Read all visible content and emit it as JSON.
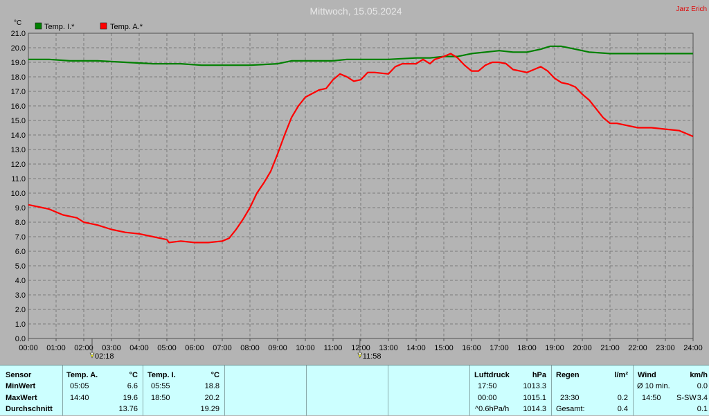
{
  "header": {
    "title": "Mittwoch, 15.05.2024",
    "author": "Jarz Erich"
  },
  "colors": {
    "background": "#b4b4b4",
    "plot_background": "#b4b4b4",
    "grid": "#7a7a7a",
    "temp_inside": "#008000",
    "temp_outside": "#ff0000",
    "stats_background": "#ccffff"
  },
  "chart_data": {
    "type": "line",
    "title": "Mittwoch, 15.05.2024",
    "ylabel": "°C",
    "xlabel": "",
    "ylim": [
      0,
      21
    ],
    "xlim": [
      0,
      24
    ],
    "grid": true,
    "legend_position": "top-left",
    "y_ticks": [
      "0.0",
      "1.0",
      "2.0",
      "3.0",
      "4.0",
      "5.0",
      "6.0",
      "7.0",
      "8.0",
      "9.0",
      "10.0",
      "11.0",
      "12.0",
      "13.0",
      "14.0",
      "15.0",
      "16.0",
      "17.0",
      "18.0",
      "19.0",
      "20.0",
      "21.0"
    ],
    "x_ticks": [
      "00:00",
      "01:00",
      "02:00",
      "03:00",
      "04:00",
      "05:00",
      "06:00",
      "07:00",
      "08:00",
      "09:00",
      "10:00",
      "11:00",
      "12:00",
      "13:00",
      "14:00",
      "15:00",
      "16:00",
      "17:00",
      "18:00",
      "19:00",
      "20:00",
      "21:00",
      "22:00",
      "23:00",
      "24:00"
    ],
    "markers": [
      {
        "icon": "sunrise-icon",
        "x": 2.3,
        "label": "02:18"
      },
      {
        "icon": "sun-icon",
        "x": 11.97,
        "label": "11:58"
      }
    ],
    "series": [
      {
        "name": "Temp. I.*",
        "color": "#008000",
        "x": [
          0,
          0.75,
          1.5,
          2.5,
          3.5,
          4.5,
          5.5,
          6.25,
          7,
          8,
          9,
          9.5,
          10,
          10.5,
          11,
          11.5,
          12,
          12.5,
          13,
          14,
          14.5,
          15,
          15.5,
          16,
          16.5,
          17,
          17.5,
          18,
          18.5,
          18.83,
          19.25,
          19.75,
          20.25,
          21,
          22,
          23,
          24
        ],
        "values": [
          19.2,
          19.2,
          19.1,
          19.1,
          19.0,
          18.9,
          18.9,
          18.8,
          18.8,
          18.8,
          18.9,
          19.1,
          19.1,
          19.1,
          19.1,
          19.2,
          19.2,
          19.2,
          19.2,
          19.3,
          19.3,
          19.4,
          19.4,
          19.6,
          19.7,
          19.8,
          19.7,
          19.7,
          19.9,
          20.1,
          20.1,
          19.9,
          19.7,
          19.6,
          19.6,
          19.6,
          19.6
        ]
      },
      {
        "name": "Temp. A.*",
        "color": "#ff0000",
        "x": [
          0,
          0.5,
          0.75,
          1.25,
          1.75,
          2,
          2.5,
          3,
          3.5,
          4,
          4.5,
          5,
          5.08,
          5.5,
          6,
          6.5,
          7,
          7.25,
          7.5,
          7.75,
          8,
          8.25,
          8.5,
          8.75,
          9,
          9.25,
          9.5,
          9.75,
          10,
          10.5,
          10.75,
          11,
          11.25,
          11.5,
          11.75,
          12,
          12.25,
          12.5,
          13,
          13.25,
          13.5,
          14,
          14.25,
          14.5,
          14.67,
          15,
          15.25,
          15.5,
          15.75,
          16,
          16.25,
          16.5,
          16.75,
          17,
          17.25,
          17.5,
          17.75,
          18,
          18.25,
          18.5,
          18.75,
          19,
          19.25,
          19.5,
          19.75,
          20,
          20.25,
          20.5,
          20.75,
          21,
          21.25,
          21.5,
          22,
          22.5,
          23,
          23.5,
          23.75,
          24
        ],
        "values": [
          9.2,
          9.0,
          8.9,
          8.5,
          8.3,
          8.0,
          7.8,
          7.5,
          7.3,
          7.2,
          7.0,
          6.8,
          6.6,
          6.7,
          6.6,
          6.6,
          6.7,
          6.9,
          7.5,
          8.2,
          9.0,
          10.0,
          10.7,
          11.5,
          12.7,
          14.0,
          15.2,
          16.0,
          16.6,
          17.1,
          17.2,
          17.8,
          18.2,
          18.0,
          17.7,
          17.8,
          18.3,
          18.3,
          18.2,
          18.7,
          18.9,
          18.9,
          19.2,
          18.9,
          19.2,
          19.4,
          19.6,
          19.3,
          18.8,
          18.4,
          18.4,
          18.8,
          19.0,
          19.0,
          18.9,
          18.5,
          18.4,
          18.3,
          18.5,
          18.7,
          18.4,
          17.9,
          17.6,
          17.5,
          17.3,
          16.8,
          16.4,
          15.8,
          15.2,
          14.8,
          14.8,
          14.7,
          14.5,
          14.5,
          14.4,
          14.3,
          14.1,
          13.9
        ]
      }
    ]
  },
  "stats": {
    "sensor": {
      "header": "Sensor",
      "rows": [
        "MinWert",
        "MaxWert",
        "Durchschnitt"
      ]
    },
    "temp_outside": {
      "header": "Temp. A.",
      "unit": "°C",
      "min_time": "05:05",
      "min_value": "6.6",
      "max_time": "14:40",
      "max_value": "19.6",
      "avg_value": "13.76"
    },
    "temp_inside": {
      "header": "Temp. I.",
      "unit": "°C",
      "min_time": "05:55",
      "min_value": "18.8",
      "max_time": "18:50",
      "max_value": "20.2",
      "avg_value": "19.29"
    },
    "pressure": {
      "header": "Luftdruck",
      "unit": "hPa",
      "r1_label": "17:50",
      "r1_value": "1013.3",
      "r2_label": "00:00",
      "r2_value": "1015.1",
      "r3_label": "^0.6hPa/h",
      "r3_value": "1014.3"
    },
    "rain": {
      "header": "Regen",
      "unit": "l/m²",
      "r2_label": "23:30",
      "r2_value": "0.2",
      "r3_label": "Gesamt:",
      "r3_value": "0.4"
    },
    "wind": {
      "header": "Wind",
      "unit": "km/h",
      "r1_label": "Ø 10 min.",
      "r1_value": "0.0",
      "r2_label": "14:50",
      "r2_dir": "S-SW",
      "r2_value": "3.4",
      "r3_value": "0.1"
    }
  }
}
